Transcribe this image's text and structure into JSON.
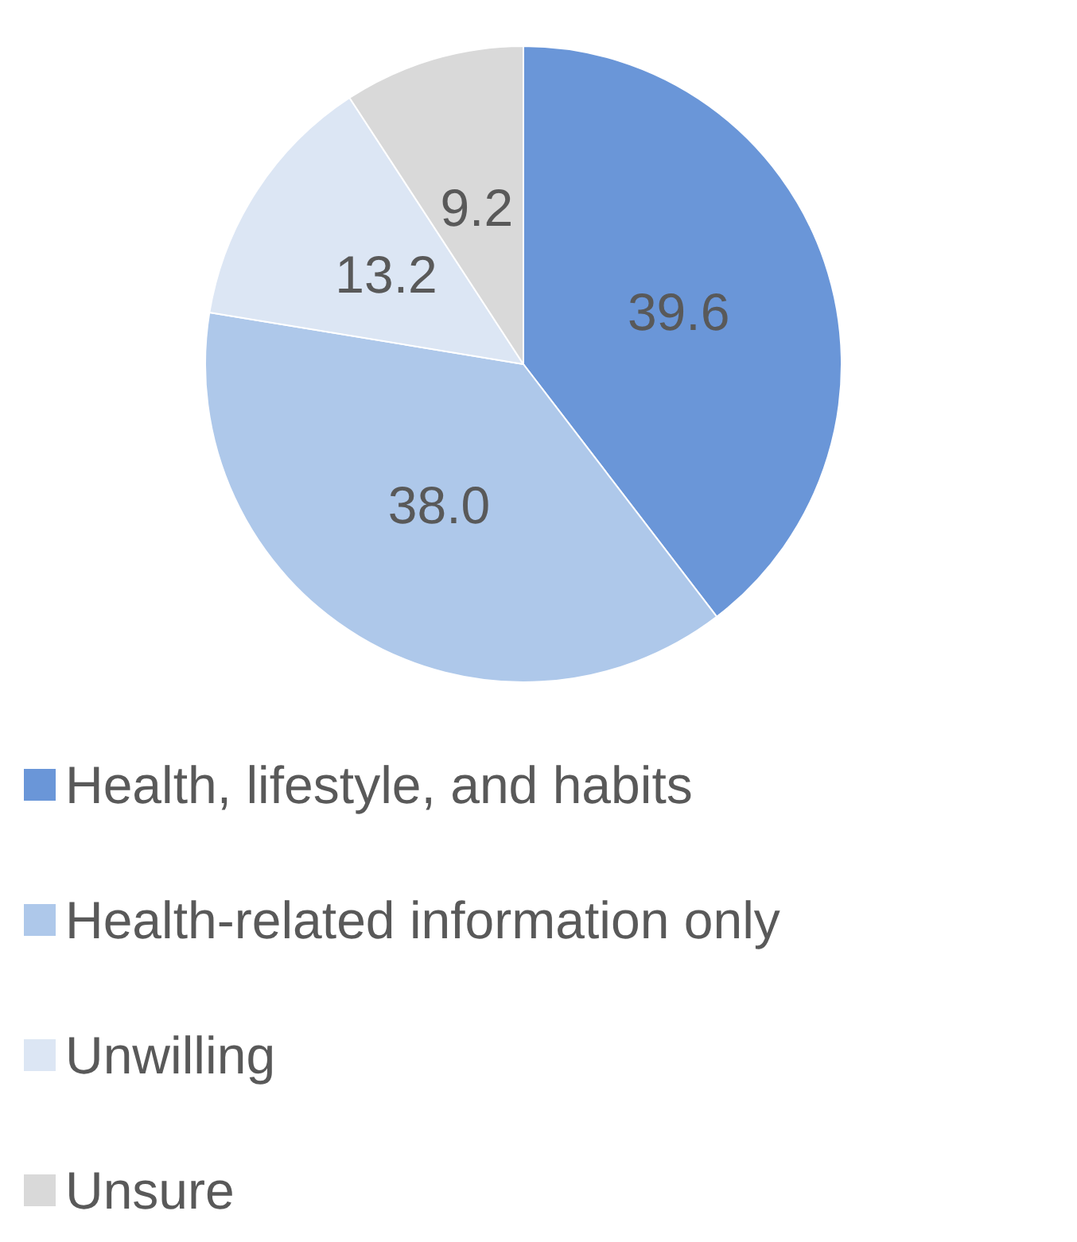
{
  "chart_data": {
    "type": "pie",
    "categories": [
      "Health, lifestyle, and habits",
      "Health-related information only",
      "Unwilling",
      "Unsure"
    ],
    "values": [
      39.6,
      38.0,
      13.2,
      9.2
    ],
    "colors": [
      "#6a96d8",
      "#aec8ea",
      "#dce6f4",
      "#d9d9d9"
    ],
    "value_labels": [
      "39.6",
      "38.0",
      "13.2",
      "9.2"
    ],
    "legend": "bottom"
  }
}
